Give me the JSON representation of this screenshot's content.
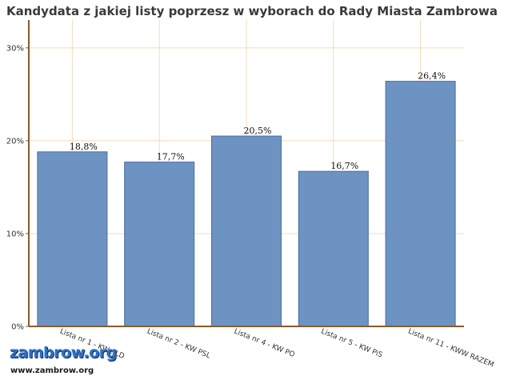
{
  "chart_data": {
    "type": "bar",
    "title": "Kandydata z jakiej listy poprzesz w wyborach do Rady Miasta Zambrowa",
    "categories": [
      "Lista nr 1 - KW SLD",
      "Lista nr 2 - KW PSL",
      "Lista nr 4 - KW PO",
      "Lista nr 5 - KW PiS",
      "Lista nr 11 - KWW RAZEM"
    ],
    "values": [
      18.8,
      17.7,
      20.5,
      16.7,
      26.4
    ],
    "data_labels": [
      "18,8%",
      "17,7%",
      "20,5%",
      "16,7%",
      "26,4%"
    ],
    "ylim": [
      0,
      30
    ],
    "yticks": [
      0,
      10,
      20,
      30
    ],
    "ytick_labels": [
      "0%",
      "10%",
      "20%",
      "30%"
    ],
    "xlabel": "",
    "ylabel": "",
    "grid": true,
    "colors": {
      "bar": "#6d93c3",
      "bar_border": "#4a6f9e",
      "grid": "#f3dcb8",
      "axis": "#8b5a2b"
    }
  },
  "watermark": {
    "logo": "zambrow.org",
    "url": "www.zambrow.org"
  }
}
